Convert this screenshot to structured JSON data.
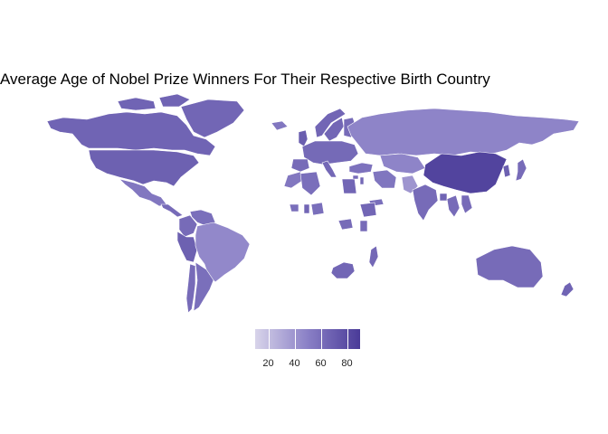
{
  "title": "Average Age of Nobel Prize Winners For Their Respective Birth Country",
  "colors": {
    "low": "#d8d4ea",
    "mid": "#8a80c6",
    "high": "#4a3b98",
    "background": "#ffffff",
    "border": "#ffffff"
  },
  "legend": {
    "min": 10,
    "max": 90,
    "ticks": [
      "20",
      "40",
      "60",
      "80"
    ],
    "tick_values": [
      20,
      40,
      60,
      80
    ]
  },
  "regions": [
    {
      "name": "Canada",
      "value": 66
    },
    {
      "name": "Greenland",
      "value": 65
    },
    {
      "name": "United States",
      "value": 68
    },
    {
      "name": "Mexico",
      "value": 55
    },
    {
      "name": "Guatemala",
      "value": 62
    },
    {
      "name": "Venezuela",
      "value": 60
    },
    {
      "name": "Colombia",
      "value": 62
    },
    {
      "name": "Peru",
      "value": 68
    },
    {
      "name": "Brazil",
      "value": 46
    },
    {
      "name": "Chile",
      "value": 62
    },
    {
      "name": "Argentina",
      "value": 60
    },
    {
      "name": "Iceland",
      "value": 55
    },
    {
      "name": "United Kingdom",
      "value": 70
    },
    {
      "name": "Norway",
      "value": 65
    },
    {
      "name": "Sweden",
      "value": 65
    },
    {
      "name": "Finland",
      "value": 62
    },
    {
      "name": "Western Europe",
      "value": 63
    },
    {
      "name": "Spain",
      "value": 62
    },
    {
      "name": "Italy",
      "value": 64
    },
    {
      "name": "Turkey",
      "value": 58
    },
    {
      "name": "Russia",
      "value": 48
    },
    {
      "name": "Algeria",
      "value": 60
    },
    {
      "name": "Morocco",
      "value": 55
    },
    {
      "name": "Egypt",
      "value": 65
    },
    {
      "name": "Iran",
      "value": 56
    },
    {
      "name": "Pakistan",
      "value": 40
    },
    {
      "name": "India",
      "value": 62
    },
    {
      "name": "China",
      "value": 85
    },
    {
      "name": "Korea",
      "value": 68
    },
    {
      "name": "Japan",
      "value": 62
    },
    {
      "name": "Myanmar",
      "value": 62
    },
    {
      "name": "Vietnam",
      "value": 62
    },
    {
      "name": "Ethiopia",
      "value": 65
    },
    {
      "name": "Nigeria",
      "value": 60
    },
    {
      "name": "Ghana",
      "value": 65
    },
    {
      "name": "Liberia",
      "value": 60
    },
    {
      "name": "Kenya",
      "value": 62
    },
    {
      "name": "DR Congo",
      "value": 62
    },
    {
      "name": "Madagascar",
      "value": 64
    },
    {
      "name": "South Africa",
      "value": 65
    },
    {
      "name": "Australia",
      "value": 62
    },
    {
      "name": "New Zealand",
      "value": 66
    },
    {
      "name": "Cyprus",
      "value": 62
    },
    {
      "name": "Israel",
      "value": 64
    },
    {
      "name": "Yemen",
      "value": 60
    },
    {
      "name": "Bangladesh",
      "value": 66
    }
  ]
}
